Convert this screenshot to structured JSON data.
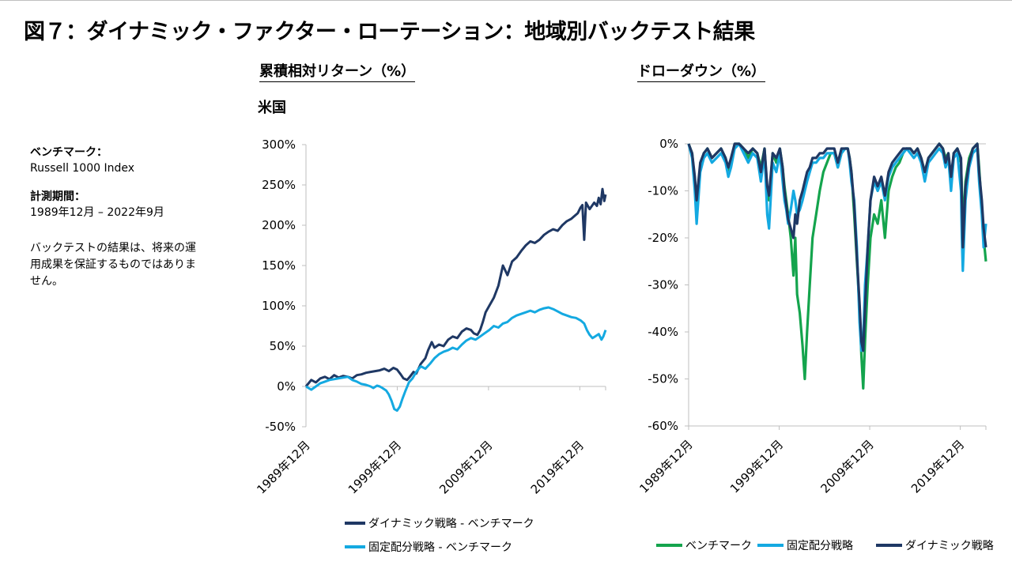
{
  "title": "図７：ダイナミック・ファクター・ローテーション：地域別バックテスト結果",
  "region": "米国",
  "sidebar": {
    "benchmark_label": "ベンチマーク：",
    "benchmark_value": "Russell 1000 Index",
    "period_label": "計測期間：",
    "period_value": "1989年12月 – 2022年9月",
    "disclaimer": "バックテストの結果は、将来の運用成果を保証するものではありません。"
  },
  "colors": {
    "dark_navy": "#1f3864",
    "light_blue": "#14a9e1",
    "green": "#14a44d",
    "axis": "#bfbfbf"
  },
  "chart_data": [
    {
      "type": "line",
      "heading": "累積相対リターン（%）",
      "x_ticks": [
        "1989年12月",
        "1999年12月",
        "2009年12月",
        "2019年12月"
      ],
      "x_range": [
        1989.92,
        2022.75
      ],
      "y_range": [
        -50,
        300
      ],
      "y_ticks": [
        "300%",
        "250%",
        "200%",
        "150%",
        "100%",
        "50%",
        "0%",
        "-50%"
      ],
      "grid": false,
      "legend_position": "bottom",
      "series": [
        {
          "name": "ダイナミック戦略 - ベンチマーク",
          "color": "#1f3864",
          "x": [
            1989.92,
            1990.5,
            1991.0,
            1991.5,
            1992.0,
            1992.5,
            1993.0,
            1993.5,
            1994.0,
            1994.5,
            1995.0,
            1995.5,
            1996.0,
            1996.5,
            1997.0,
            1997.5,
            1998.0,
            1998.5,
            1999.0,
            1999.5,
            1999.9,
            2000.3,
            2000.6,
            2001.0,
            2001.3,
            2001.7,
            2002.0,
            2002.5,
            2003.0,
            2003.3,
            2003.7,
            2004.0,
            2004.5,
            2005.0,
            2005.5,
            2006.0,
            2006.5,
            2007.0,
            2007.5,
            2008.0,
            2008.3,
            2008.7,
            2009.0,
            2009.3,
            2009.6,
            2010.0,
            2010.5,
            2011.0,
            2011.5,
            2012.0,
            2012.5,
            2013.0,
            2013.5,
            2014.0,
            2014.5,
            2015.0,
            2015.5,
            2016.0,
            2016.5,
            2017.0,
            2017.5,
            2018.0,
            2018.5,
            2019.0,
            2019.4,
            2019.7,
            2020.0,
            2020.2,
            2020.4,
            2020.6,
            2021.0,
            2021.5,
            2021.8,
            2022.0,
            2022.2,
            2022.4,
            2022.6,
            2022.75
          ],
          "values": [
            0,
            8,
            5,
            10,
            12,
            9,
            14,
            11,
            13,
            12,
            10,
            14,
            15,
            17,
            18,
            19,
            20,
            22,
            19,
            23,
            21,
            15,
            10,
            8,
            12,
            18,
            16,
            28,
            35,
            45,
            55,
            48,
            52,
            50,
            58,
            62,
            60,
            68,
            72,
            70,
            66,
            64,
            70,
            80,
            92,
            100,
            110,
            125,
            150,
            138,
            155,
            160,
            168,
            175,
            180,
            178,
            182,
            188,
            192,
            195,
            193,
            200,
            205,
            208,
            212,
            215,
            222,
            225,
            182,
            228,
            220,
            228,
            224,
            234,
            226,
            245,
            230,
            238
          ]
        },
        {
          "name": "固定配分戦略 - ベンチマーク",
          "color": "#14a9e1",
          "x": [
            1989.92,
            1990.5,
            1991.0,
            1991.5,
            1992.0,
            1992.5,
            1993.0,
            1993.5,
            1994.0,
            1994.5,
            1995.0,
            1995.5,
            1996.0,
            1996.5,
            1997.0,
            1997.3,
            1997.7,
            1998.0,
            1998.3,
            1998.7,
            1999.0,
            1999.3,
            1999.6,
            1999.9,
            2000.2,
            2000.5,
            2000.8,
            2001.2,
            2001.6,
            2002.0,
            2002.5,
            2003.0,
            2003.5,
            2004.0,
            2004.5,
            2005.0,
            2005.5,
            2006.0,
            2006.5,
            2007.0,
            2007.5,
            2008.0,
            2008.5,
            2009.0,
            2009.5,
            2010.0,
            2010.5,
            2011.0,
            2011.5,
            2012.0,
            2012.5,
            2013.0,
            2013.5,
            2014.0,
            2014.5,
            2015.0,
            2015.5,
            2016.0,
            2016.5,
            2017.0,
            2017.5,
            2018.0,
            2018.5,
            2019.0,
            2019.5,
            2020.0,
            2020.4,
            2020.7,
            2021.0,
            2021.3,
            2021.6,
            2022.0,
            2022.3,
            2022.5,
            2022.75
          ],
          "values": [
            0,
            -4,
            0,
            4,
            6,
            8,
            9,
            10,
            11,
            12,
            8,
            6,
            3,
            2,
            0,
            -2,
            1,
            0,
            -2,
            -5,
            -10,
            -18,
            -28,
            -30,
            -25,
            -15,
            -6,
            5,
            10,
            18,
            25,
            22,
            28,
            35,
            40,
            43,
            45,
            48,
            46,
            52,
            57,
            60,
            58,
            62,
            66,
            70,
            75,
            73,
            78,
            80,
            85,
            88,
            90,
            92,
            94,
            92,
            95,
            97,
            98,
            96,
            93,
            90,
            88,
            86,
            85,
            82,
            78,
            70,
            64,
            60,
            62,
            65,
            58,
            62,
            70
          ]
        }
      ]
    },
    {
      "type": "line",
      "heading": "ドローダウン（%）",
      "x_ticks": [
        "1989年12月",
        "1999年12月",
        "2009年12月",
        "2019年12月"
      ],
      "x_range": [
        1989.92,
        2022.75
      ],
      "y_range": [
        -60,
        0
      ],
      "y_ticks": [
        "0%",
        "-10%",
        "-20%",
        "-30%",
        "-40%",
        "-50%",
        "-60%"
      ],
      "grid": false,
      "legend_position": "bottom",
      "series": [
        {
          "name": "ベンチマーク",
          "color": "#14a44d",
          "x": [
            1989.92,
            1990.3,
            1990.6,
            1990.8,
            1991.2,
            1991.6,
            1992.0,
            1992.5,
            1993.0,
            1993.5,
            1994.0,
            1994.3,
            1994.6,
            1995.0,
            1995.5,
            1996.0,
            1996.5,
            1997.0,
            1997.5,
            1997.9,
            1998.3,
            1998.6,
            1998.8,
            1999.2,
            1999.6,
            2000.0,
            2000.3,
            2000.5,
            2000.7,
            2000.9,
            2001.2,
            2001.5,
            2001.7,
            2001.9,
            2002.2,
            2002.5,
            2002.75,
            2003.0,
            2003.3,
            2003.6,
            2004.0,
            2004.4,
            2004.8,
            2005.2,
            2005.6,
            2006.0,
            2006.4,
            2006.8,
            2007.2,
            2007.5,
            2007.7,
            2007.9,
            2008.2,
            2008.5,
            2008.8,
            2009.0,
            2009.2,
            2009.4,
            2009.7,
            2010.0,
            2010.4,
            2010.8,
            2011.2,
            2011.6,
            2012.0,
            2012.4,
            2012.8,
            2013.2,
            2013.6,
            2014.0,
            2014.4,
            2014.8,
            2015.2,
            2015.6,
            2016.0,
            2016.4,
            2016.8,
            2017.2,
            2017.6,
            2018.0,
            2018.3,
            2018.6,
            2018.9,
            2019.2,
            2019.6,
            2020.0,
            2020.1,
            2020.2,
            2020.5,
            2020.9,
            2021.3,
            2021.8,
            2022.0,
            2022.3,
            2022.5,
            2022.75
          ],
          "values": [
            0,
            -2,
            -8,
            -15,
            -5,
            -2,
            -1,
            -3,
            -2,
            -1,
            -3,
            -6,
            -4,
            0,
            0,
            -1,
            -3,
            -1,
            -2,
            -5,
            -1,
            -10,
            -12,
            -2,
            -4,
            -1,
            -5,
            -9,
            -12,
            -15,
            -20,
            -28,
            -20,
            -32,
            -36,
            -43,
            -50,
            -40,
            -30,
            -20,
            -15,
            -10,
            -6,
            -4,
            -2,
            -2,
            -5,
            -2,
            -1,
            -1,
            -3,
            -6,
            -15,
            -25,
            -35,
            -45,
            -52,
            -42,
            -30,
            -20,
            -15,
            -17,
            -12,
            -20,
            -10,
            -7,
            -5,
            -4,
            -2,
            -1,
            -1,
            -2,
            -1,
            -3,
            -6,
            -3,
            -2,
            -1,
            0,
            -1,
            -3,
            -2,
            -8,
            -2,
            -1,
            -4,
            -10,
            -18,
            -8,
            -3,
            -1,
            0,
            -5,
            -14,
            -20,
            -25
          ]
        },
        {
          "name": "固定配分戦略",
          "color": "#14a9e1",
          "x": [
            1989.92,
            1990.3,
            1990.6,
            1990.8,
            1991.2,
            1991.6,
            1992.0,
            1992.5,
            1993.0,
            1993.5,
            1994.0,
            1994.3,
            1994.6,
            1995.0,
            1995.5,
            1996.0,
            1996.5,
            1997.0,
            1997.5,
            1997.9,
            1998.3,
            1998.6,
            1998.8,
            1999.2,
            1999.6,
            2000.0,
            2000.3,
            2000.5,
            2000.7,
            2000.9,
            2001.2,
            2001.5,
            2001.7,
            2001.9,
            2002.2,
            2002.5,
            2002.75,
            2003.0,
            2003.3,
            2003.6,
            2004.0,
            2004.4,
            2004.8,
            2005.2,
            2005.6,
            2006.0,
            2006.4,
            2006.8,
            2007.2,
            2007.5,
            2007.7,
            2007.9,
            2008.2,
            2008.5,
            2008.8,
            2009.0,
            2009.2,
            2009.4,
            2009.7,
            2010.0,
            2010.4,
            2010.8,
            2011.2,
            2011.6,
            2012.0,
            2012.4,
            2012.8,
            2013.2,
            2013.6,
            2014.0,
            2014.4,
            2014.8,
            2015.2,
            2015.6,
            2016.0,
            2016.4,
            2016.8,
            2017.2,
            2017.6,
            2018.0,
            2018.3,
            2018.6,
            2018.9,
            2019.2,
            2019.6,
            2020.0,
            2020.1,
            2020.2,
            2020.5,
            2020.9,
            2021.3,
            2021.8,
            2022.0,
            2022.3,
            2022.5,
            2022.75
          ],
          "values": [
            0,
            -3,
            -10,
            -17,
            -6,
            -3,
            -2,
            -4,
            -3,
            -2,
            -4,
            -7,
            -5,
            -1,
            0,
            -2,
            -4,
            -2,
            -3,
            -8,
            -2,
            -15,
            -18,
            -4,
            -6,
            -2,
            -8,
            -12,
            -14,
            -17,
            -14,
            -10,
            -12,
            -15,
            -14,
            -12,
            -10,
            -8,
            -6,
            -4,
            -4,
            -3,
            -3,
            -2,
            -2,
            -2,
            -5,
            -2,
            -1,
            -1,
            -4,
            -8,
            -12,
            -22,
            -38,
            -44,
            -42,
            -30,
            -22,
            -12,
            -8,
            -10,
            -8,
            -12,
            -7,
            -5,
            -4,
            -3,
            -2,
            -1,
            -2,
            -3,
            -2,
            -4,
            -8,
            -4,
            -3,
            -2,
            -1,
            -2,
            -5,
            -3,
            -10,
            -3,
            -2,
            -10,
            -20,
            -27,
            -12,
            -5,
            -2,
            -1,
            -8,
            -15,
            -22,
            -17
          ]
        },
        {
          "name": "ダイナミック戦略",
          "color": "#1f3864",
          "x": [
            1989.92,
            1990.3,
            1990.6,
            1990.8,
            1991.2,
            1991.6,
            1992.0,
            1992.5,
            1993.0,
            1993.5,
            1994.0,
            1994.3,
            1994.6,
            1995.0,
            1995.5,
            1996.0,
            1996.5,
            1997.0,
            1997.5,
            1997.9,
            1998.3,
            1998.6,
            1998.8,
            1999.2,
            1999.6,
            2000.0,
            2000.3,
            2000.5,
            2000.7,
            2000.9,
            2001.2,
            2001.5,
            2001.7,
            2001.9,
            2002.2,
            2002.5,
            2002.75,
            2003.0,
            2003.3,
            2003.6,
            2004.0,
            2004.4,
            2004.8,
            2005.2,
            2005.6,
            2006.0,
            2006.4,
            2006.8,
            2007.2,
            2007.5,
            2007.7,
            2007.9,
            2008.2,
            2008.5,
            2008.8,
            2009.0,
            2009.2,
            2009.4,
            2009.7,
            2010.0,
            2010.4,
            2010.8,
            2011.2,
            2011.6,
            2012.0,
            2012.4,
            2012.8,
            2013.2,
            2013.6,
            2014.0,
            2014.4,
            2014.8,
            2015.2,
            2015.6,
            2016.0,
            2016.4,
            2016.8,
            2017.2,
            2017.6,
            2018.0,
            2018.3,
            2018.6,
            2018.9,
            2019.2,
            2019.6,
            2020.0,
            2020.1,
            2020.2,
            2020.5,
            2020.9,
            2021.3,
            2021.8,
            2022.0,
            2022.3,
            2022.5,
            2022.75
          ],
          "values": [
            0,
            -2,
            -7,
            -12,
            -4,
            -2,
            -1,
            -3,
            -2,
            -1,
            -3,
            -5,
            -3,
            0,
            0,
            -1,
            -2,
            -1,
            -2,
            -6,
            -1,
            -9,
            -11,
            -2,
            -3,
            -1,
            -5,
            -10,
            -13,
            -16,
            -18,
            -20,
            -15,
            -17,
            -12,
            -10,
            -8,
            -6,
            -5,
            -3,
            -3,
            -2,
            -2,
            -1,
            -1,
            -1,
            -4,
            -1,
            -1,
            -1,
            -3,
            -6,
            -13,
            -24,
            -34,
            -42,
            -44,
            -35,
            -22,
            -12,
            -7,
            -9,
            -7,
            -11,
            -6,
            -4,
            -3,
            -2,
            -1,
            -1,
            -1,
            -2,
            -1,
            -3,
            -6,
            -3,
            -2,
            -1,
            0,
            -1,
            -4,
            -2,
            -7,
            -2,
            -1,
            -3,
            -12,
            -22,
            -9,
            -4,
            -1,
            0,
            -6,
            -12,
            -18,
            -22
          ]
        }
      ]
    }
  ]
}
